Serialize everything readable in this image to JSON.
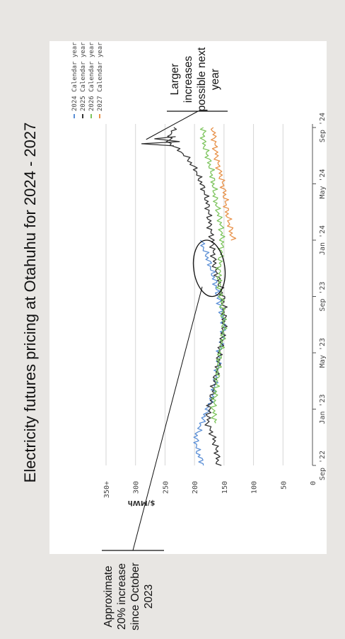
{
  "chart_data": {
    "type": "line",
    "title": "Electricity futures pricing at Otahuhu for 2024 - 2027",
    "ylabel": "$/MWh",
    "xlabel": "",
    "ylim": [
      0,
      350
    ],
    "y_ticks": [
      {
        "value": 0,
        "label": "0"
      },
      {
        "value": 50,
        "label": "50"
      },
      {
        "value": 100,
        "label": "100"
      },
      {
        "value": 150,
        "label": "150"
      },
      {
        "value": 200,
        "label": "200"
      },
      {
        "value": 250,
        "label": "250"
      },
      {
        "value": 300,
        "label": "300"
      },
      {
        "value": 350,
        "label": "350+"
      }
    ],
    "x_ticks": [
      "Sep '22",
      "Jan '23",
      "May '23",
      "Sep '23",
      "Jan '24",
      "May '24",
      "Sep '24"
    ],
    "grid": "horizontal",
    "legend_position": "top-right",
    "series": [
      {
        "name": "2024 Calendar year",
        "color": "#5b8fd6",
        "x": [
          "Sep '22",
          "Oct '22",
          "Nov '22",
          "Dec '22",
          "Jan '23",
          "Feb '23",
          "Mar '23",
          "Apr '23",
          "May '23",
          "Jun '23",
          "Jul '23",
          "Aug '23",
          "Sep '23",
          "Oct '23",
          "Nov '23",
          "Dec '23",
          "Jan '24"
        ],
        "values": [
          185,
          195,
          198,
          188,
          178,
          168,
          165,
          160,
          158,
          152,
          150,
          155,
          160,
          165,
          172,
          180,
          190
        ]
      },
      {
        "name": "2025 Calendar year",
        "color": "#333333",
        "x": [
          "Sep '22",
          "Oct '22",
          "Nov '22",
          "Dec '22",
          "Jan '23",
          "Feb '23",
          "Mar '23",
          "Apr '23",
          "May '23",
          "Jun '23",
          "Jul '23",
          "Aug '23",
          "Sep '23",
          "Oct '23",
          "Nov '23",
          "Dec '23",
          "Jan '24",
          "Feb '24",
          "Mar '24",
          "Apr '24",
          "May '24",
          "Jun '24",
          "Jul '24",
          "Aug '24",
          "Sep '24"
        ],
        "values": [
          160,
          162,
          168,
          178,
          175,
          170,
          166,
          160,
          158,
          153,
          150,
          150,
          152,
          158,
          165,
          168,
          170,
          174,
          176,
          180,
          188,
          198,
          215,
          245,
          235
        ]
      },
      {
        "name": "2026 Calendar year",
        "color": "#7cc45c",
        "x": [
          "Dec '22",
          "Jan '23",
          "Feb '23",
          "Mar '23",
          "Apr '23",
          "May '23",
          "Jun '23",
          "Jul '23",
          "Aug '23",
          "Sep '23",
          "Oct '23",
          "Nov '23",
          "Dec '23",
          "Jan '24",
          "Feb '24",
          "Mar '24",
          "Apr '24",
          "May '24",
          "Jun '24",
          "Jul '24",
          "Aug '24",
          "Sep '24"
        ],
        "values": [
          165,
          168,
          165,
          162,
          160,
          157,
          152,
          150,
          152,
          155,
          158,
          158,
          155,
          153,
          155,
          160,
          165,
          168,
          172,
          178,
          185,
          185
        ]
      },
      {
        "name": "2027 Calendar year",
        "color": "#e8924a",
        "x": [
          "Jan '24",
          "Feb '24",
          "Mar '24",
          "Apr '24",
          "May '24",
          "Jun '24",
          "Jul '24",
          "Aug '24",
          "Sep '24"
        ],
        "values": [
          135,
          140,
          145,
          148,
          152,
          158,
          163,
          166,
          168
        ]
      }
    ]
  },
  "annotations": {
    "bottom_lines": [
      "Approximate",
      "20% increase",
      "since October",
      "2023"
    ],
    "top_lines": [
      "Larger",
      "increases",
      "possible next",
      "year"
    ]
  }
}
